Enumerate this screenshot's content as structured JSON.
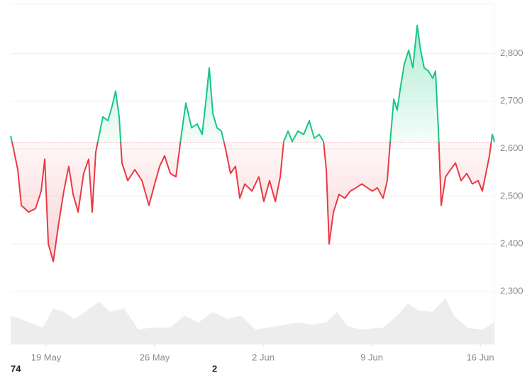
{
  "chart_data": {
    "type": "line",
    "baseline": 2613,
    "xlim": [
      16.71,
      47.91
    ],
    "xticks": [
      {
        "value": 19,
        "label": "19 May"
      },
      {
        "value": 26,
        "label": "26 May"
      },
      {
        "value": 33,
        "label": "2 Jun"
      },
      {
        "value": 40,
        "label": "9 Jun"
      },
      {
        "value": 47,
        "label": "16 Jun"
      }
    ],
    "ylim": [
      2190,
      2905
    ],
    "yticks": [
      {
        "value": 2300,
        "label": "2,300"
      },
      {
        "value": 2400,
        "label": "2,400"
      },
      {
        "value": 2500,
        "label": "2,500"
      },
      {
        "value": 2600,
        "label": "2,600"
      },
      {
        "value": 2700,
        "label": "2,700"
      },
      {
        "value": 2800,
        "label": "2,800"
      }
    ],
    "grid": true,
    "up_color": "#16c784",
    "down_color": "#ea3943",
    "x": [
      16.71,
      16.85,
      17.17,
      17.4,
      17.86,
      18.31,
      18.68,
      18.91,
      19.14,
      19.46,
      19.78,
      20.14,
      20.46,
      20.74,
      21.06,
      21.42,
      21.74,
      21.97,
      22.2,
      22.43,
      22.66,
      22.98,
      23.25,
      23.48,
      23.71,
      23.89,
      24.26,
      24.72,
      25.18,
      25.63,
      26.0,
      26.32,
      26.64,
      27.01,
      27.37,
      27.69,
      28.01,
      28.38,
      28.74,
      29.06,
      29.29,
      29.52,
      29.75,
      30.02,
      30.3,
      30.57,
      30.89,
      31.21,
      31.49,
      31.81,
      32.27,
      32.72,
      33.04,
      33.41,
      33.78,
      34.1,
      34.32,
      34.6,
      34.87,
      35.24,
      35.61,
      35.97,
      36.29,
      36.61,
      36.89,
      37.07,
      37.25,
      37.53,
      37.89,
      38.26,
      38.62,
      38.99,
      39.36,
      39.72,
      40.04,
      40.36,
      40.73,
      41.0,
      41.19,
      41.42,
      41.64,
      41.87,
      42.1,
      42.38,
      42.65,
      42.93,
      43.15,
      43.38,
      43.66,
      43.93,
      44.11,
      44.3,
      44.48,
      44.76,
      45.08,
      45.4,
      45.76,
      46.13,
      46.49,
      46.86,
      47.13,
      47.36,
      47.59,
      47.77,
      47.91
    ],
    "values": [
      2627,
      2607,
      2556,
      2481,
      2467,
      2474,
      2511,
      2578,
      2400,
      2363,
      2437,
      2511,
      2563,
      2504,
      2467,
      2548,
      2578,
      2467,
      2593,
      2630,
      2667,
      2659,
      2689,
      2721,
      2667,
      2570,
      2533,
      2556,
      2533,
      2481,
      2526,
      2563,
      2585,
      2548,
      2541,
      2622,
      2696,
      2644,
      2652,
      2630,
      2696,
      2770,
      2674,
      2644,
      2637,
      2600,
      2548,
      2563,
      2496,
      2526,
      2511,
      2541,
      2489,
      2533,
      2489,
      2541,
      2615,
      2637,
      2615,
      2637,
      2630,
      2659,
      2622,
      2630,
      2615,
      2556,
      2400,
      2467,
      2504,
      2496,
      2511,
      2518,
      2526,
      2518,
      2511,
      2518,
      2496,
      2533,
      2615,
      2704,
      2681,
      2733,
      2778,
      2807,
      2770,
      2859,
      2807,
      2770,
      2763,
      2748,
      2763,
      2637,
      2481,
      2541,
      2556,
      2570,
      2533,
      2548,
      2526,
      2533,
      2511,
      2548,
      2585,
      2630,
      2615
    ],
    "y2lim": [
      0,
      100
    ],
    "volume": {
      "color": "#ededed",
      "axis": "y2",
      "x": [
        16.71,
        17.4,
        18.31,
        18.77,
        19.46,
        20.14,
        20.83,
        21.52,
        22.43,
        23.12,
        24.03,
        24.95,
        25.86,
        27.01,
        27.92,
        28.84,
        29.75,
        30.66,
        31.58,
        32.5,
        33.87,
        35.24,
        36.15,
        37.07,
        37.76,
        38.44,
        39.36,
        40.73,
        41.64,
        42.33,
        43.01,
        43.93,
        44.76,
        45.3,
        46.22,
        47.13,
        47.91
      ],
      "values": [
        8.3,
        7.3,
        5.6,
        4.8,
        10.4,
        9.4,
        7.3,
        9.4,
        12.5,
        9.4,
        10.4,
        4.2,
        4.8,
        4.8,
        8.3,
        6.3,
        9.4,
        7.3,
        8.3,
        4.2,
        5.2,
        6.3,
        5.6,
        6.3,
        9.4,
        5.2,
        4.2,
        4.8,
        8.3,
        11.9,
        9.8,
        9.4,
        13.5,
        8.3,
        4.6,
        4.2,
        6.3
      ]
    },
    "annotations": [
      "74",
      "2"
    ]
  }
}
